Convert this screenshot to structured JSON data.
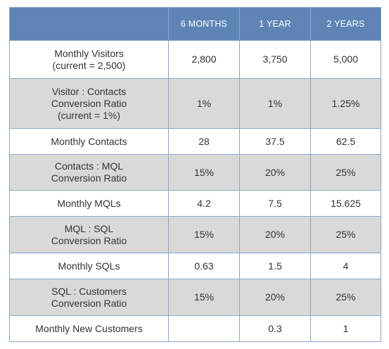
{
  "table": {
    "headers": [
      "",
      "6 MONTHS",
      "1 YEAR",
      "2 YEARS"
    ],
    "rows": [
      {
        "label": "Monthly Visitors\n(current = 2,500)",
        "values": [
          "2,800",
          "3,750",
          "5,000"
        ]
      },
      {
        "label": "Visitor : Contacts\nConversion Ratio\n(current = 1%)",
        "values": [
          "1%",
          "1%",
          "1.25%"
        ]
      },
      {
        "label": "Monthly Contacts",
        "values": [
          "28",
          "37.5",
          "62.5"
        ]
      },
      {
        "label": "Contacts : MQL\nConversion Ratio",
        "values": [
          "15%",
          "20%",
          "25%"
        ]
      },
      {
        "label": "Monthly MQLs",
        "values": [
          "4.2",
          "7.5",
          "15.625"
        ]
      },
      {
        "label": "MQL : SQL\nConversion Ratio",
        "values": [
          "15%",
          "20%",
          "25%"
        ]
      },
      {
        "label": "Monthly SQLs",
        "values": [
          "0.63",
          "1.5",
          "4"
        ]
      },
      {
        "label": "SQL : Customers\nConversion Ratio",
        "values": [
          "15%",
          "20%",
          "25%"
        ]
      },
      {
        "label": "Monthly New Customers",
        "values": [
          "",
          "0.3",
          "1"
        ]
      }
    ]
  },
  "colors": {
    "header_bg": "#5d84b4",
    "header_text": "#ffffff",
    "shaded_row_bg": "#d9d9d9",
    "border": "#8aa6c5"
  }
}
